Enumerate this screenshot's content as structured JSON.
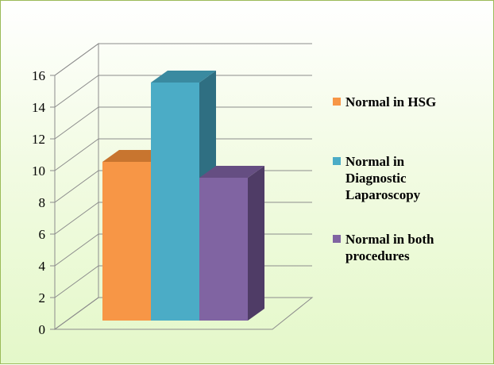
{
  "chart_data": {
    "type": "bar",
    "categories": [
      "Normal in HSG",
      "Normal in Diagnostic Laparoscopy",
      "Normal in both procedures"
    ],
    "values": [
      10,
      15,
      9
    ],
    "ylim": [
      0,
      16
    ],
    "yticks": [
      "0",
      "2",
      "4",
      "6",
      "8",
      "10",
      "12",
      "14",
      "16"
    ],
    "grid": true,
    "legend_position": "right",
    "legend": [
      {
        "lines": [
          "Normal in HSG"
        ]
      },
      {
        "lines": [
          "Normal in",
          "Diagnostic",
          "Laparoscopy"
        ]
      },
      {
        "lines": [
          "Normal in both",
          "procedures"
        ]
      }
    ],
    "colors": [
      {
        "front": "#f79646",
        "side": "#b46a2a",
        "top": "#c8752f"
      },
      {
        "front": "#4bacc6",
        "side": "#2f6f82",
        "top": "#3a8aa0"
      },
      {
        "front": "#8064a2",
        "side": "#4f3c66",
        "top": "#654e82"
      }
    ],
    "xlabel": "",
    "ylabel": ""
  }
}
